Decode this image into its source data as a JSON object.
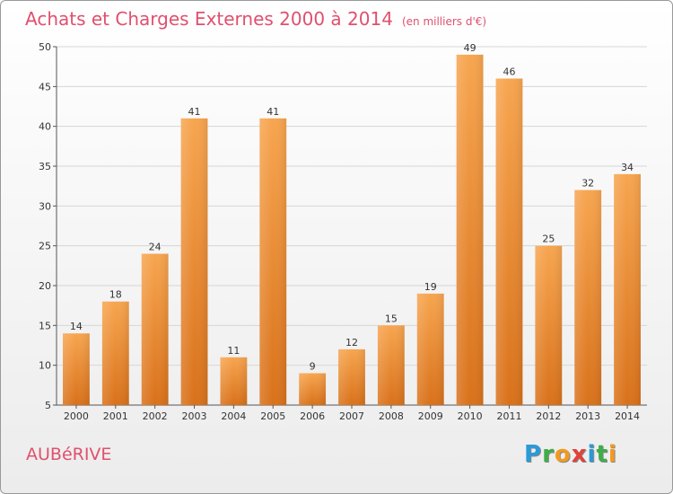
{
  "header": {
    "title": "Achats et Charges Externes 2000 à 2014",
    "subtitle": "(en milliers d'€)"
  },
  "footer": {
    "commune": "AUBéRIVE",
    "logo_letters": [
      {
        "char": "P",
        "color": "#2a9ad8"
      },
      {
        "char": "r",
        "color": "#3fae49"
      },
      {
        "char": "o",
        "color": "#f29a1f"
      },
      {
        "char": "x",
        "color": "#e2413a"
      },
      {
        "char": "i",
        "color": "#2a9ad8"
      },
      {
        "char": "t",
        "color": "#3fae49"
      },
      {
        "char": "i",
        "color": "#f29a1f"
      }
    ]
  },
  "chart_data": {
    "type": "bar",
    "title": "Achats et Charges Externes 2000 à 2014",
    "subtitle": "(en milliers d'€)",
    "categories": [
      "2000",
      "2001",
      "2002",
      "2003",
      "2004",
      "2005",
      "2006",
      "2007",
      "2008",
      "2009",
      "2010",
      "2011",
      "2012",
      "2013",
      "2014"
    ],
    "values": [
      14,
      18,
      24,
      41,
      11,
      41,
      9,
      12,
      15,
      19,
      49,
      46,
      25,
      32,
      34
    ],
    "yticks": [
      5,
      10,
      15,
      20,
      25,
      30,
      35,
      40,
      45,
      50
    ],
    "ylim": [
      5,
      50
    ],
    "grid": true,
    "bar_color_top": "#f7a54f",
    "bar_color_bottom": "#d9711a"
  }
}
